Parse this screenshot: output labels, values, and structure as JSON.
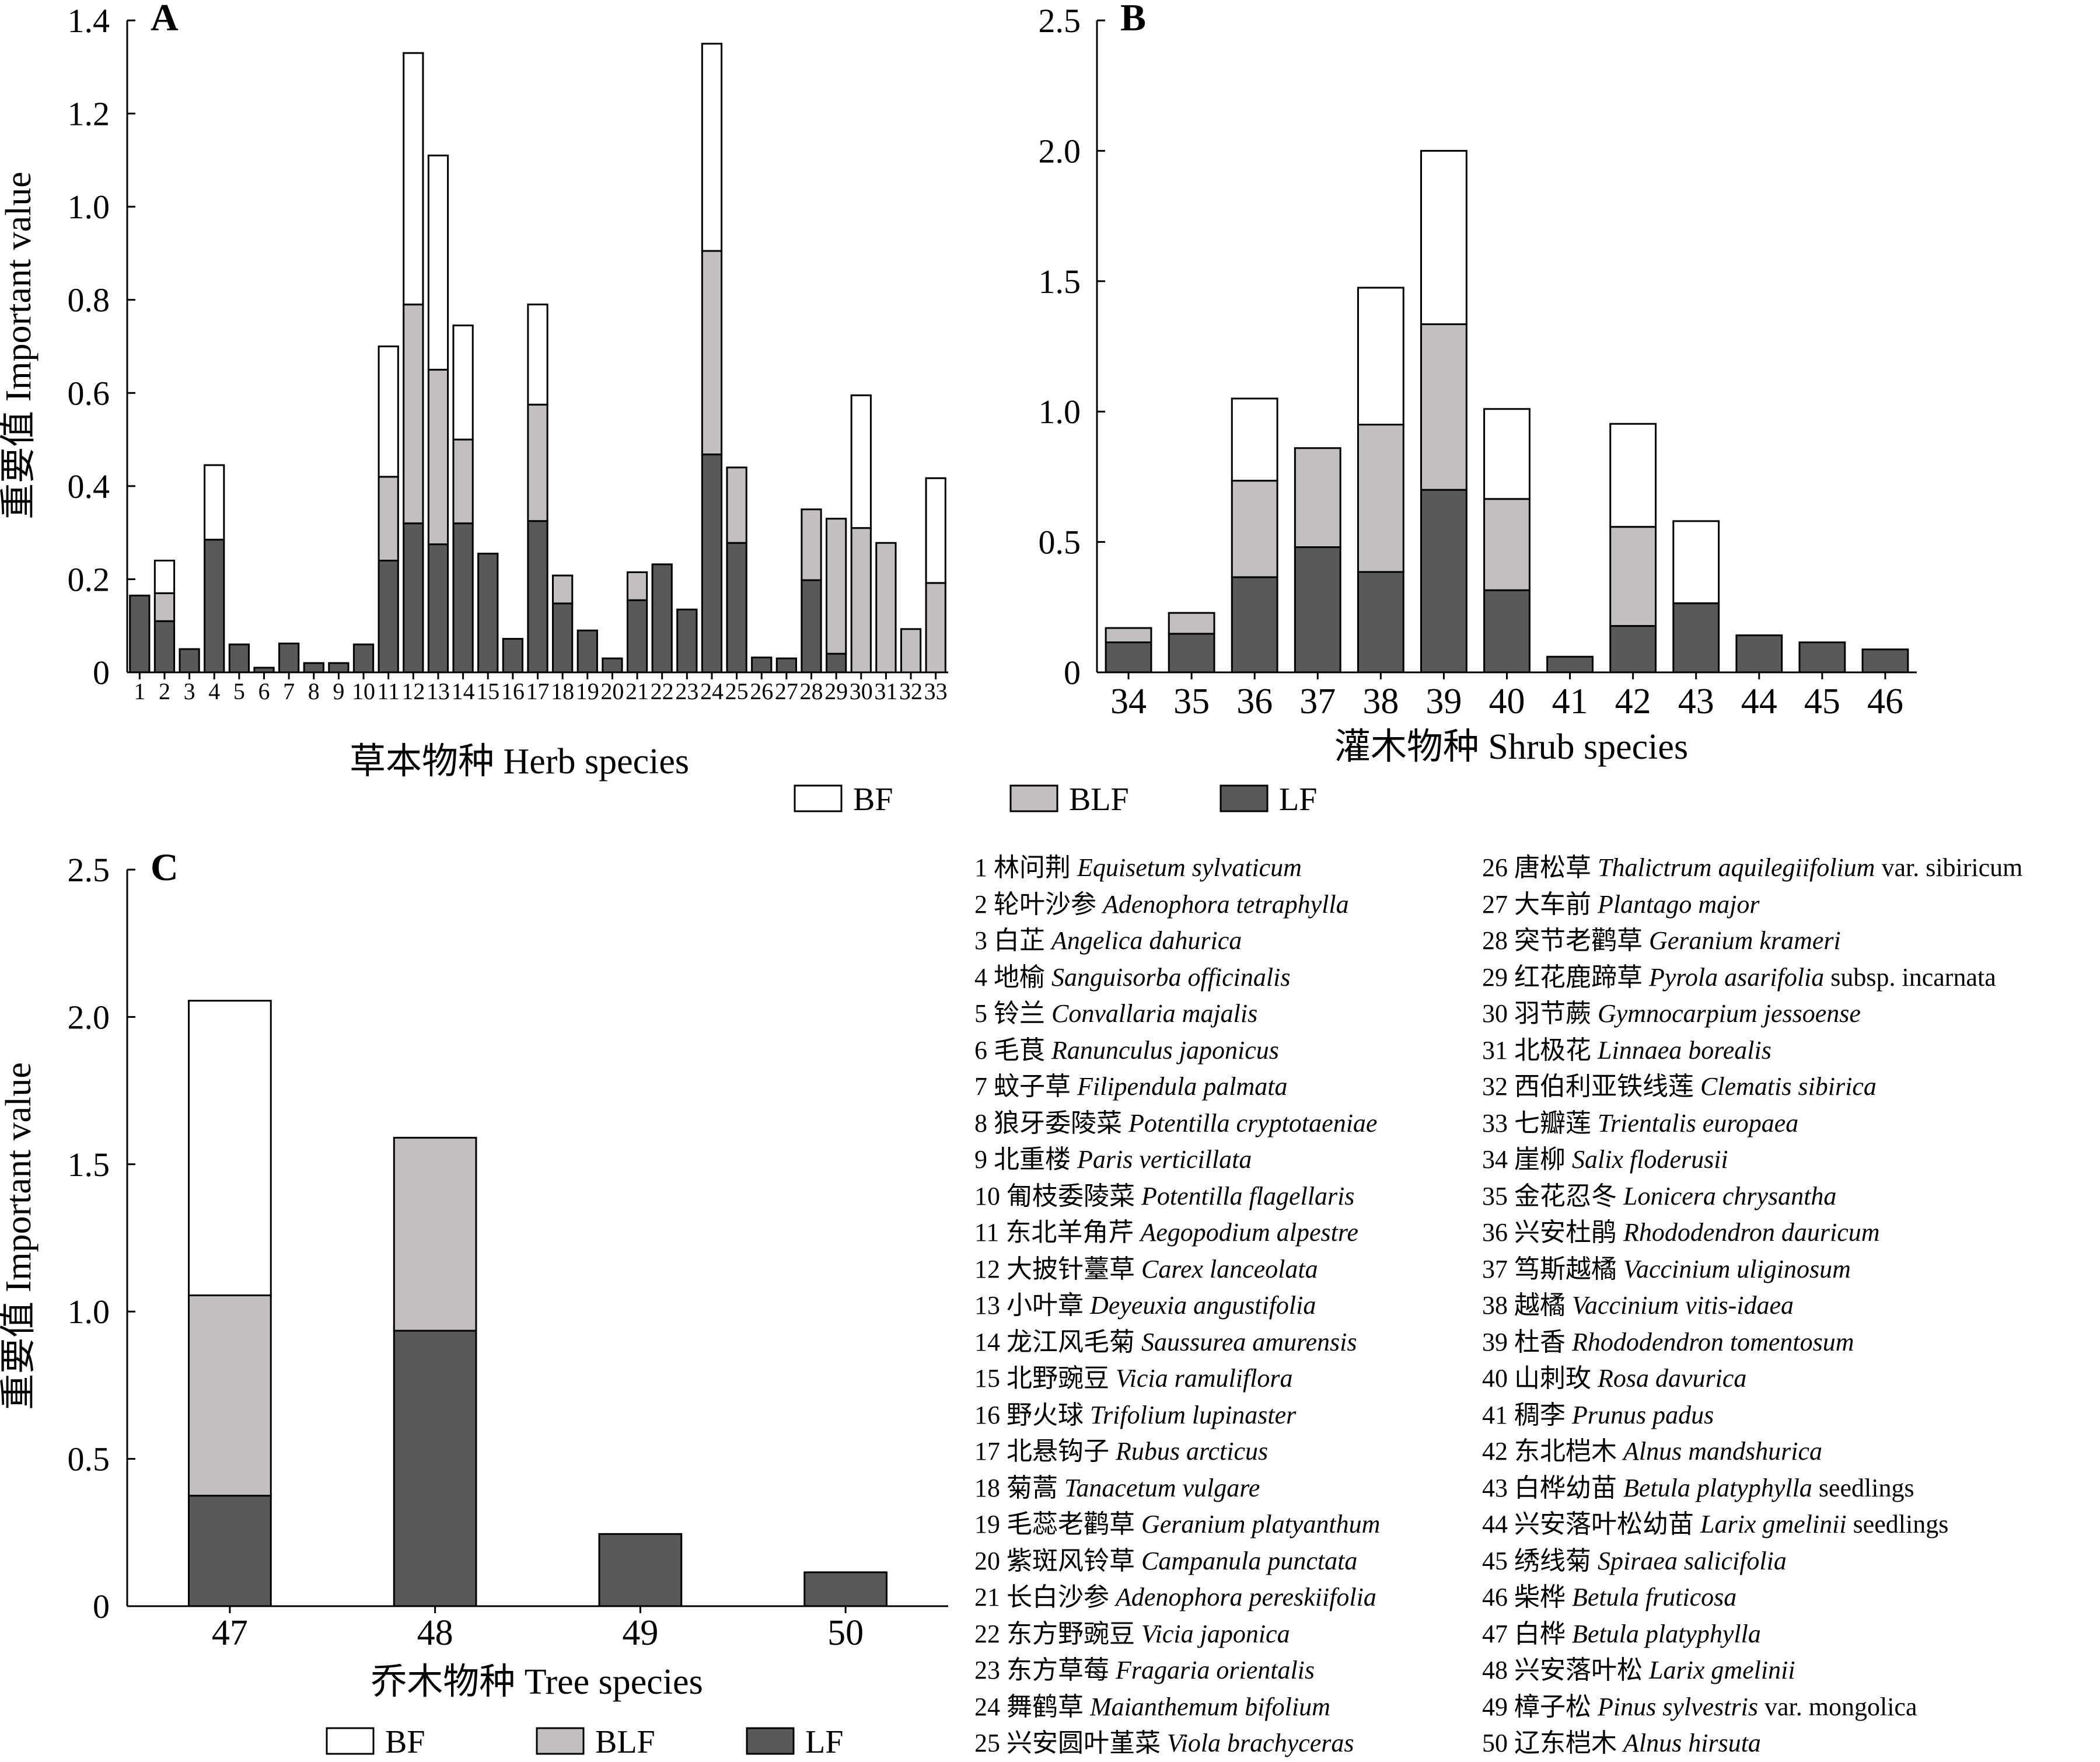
{
  "colors": {
    "BF": "#ffffff",
    "BLF": "#c3bec1",
    "LF": "#595959",
    "stroke": "#000000"
  },
  "legend": [
    {
      "key": "BF",
      "label": "BF"
    },
    {
      "key": "BLF",
      "label": "BLF"
    },
    {
      "key": "LF",
      "label": "LF"
    }
  ],
  "chart_data": [
    {
      "type": "bar",
      "stacked": true,
      "panel": "A",
      "xlabel": "草本物种 Herb species",
      "ylabel": "重要值 Important value",
      "ylim": [
        0,
        1.4
      ],
      "yticks": [
        "0",
        "0.2",
        "0.4",
        "0.6",
        "0.8",
        "1.0",
        "1.2",
        "1.4"
      ],
      "categories": [
        "1",
        "2",
        "3",
        "4",
        "5",
        "6",
        "7",
        "8",
        "9",
        "10",
        "11",
        "12",
        "13",
        "14",
        "15",
        "16",
        "17",
        "18",
        "19",
        "20",
        "21",
        "22",
        "23",
        "24",
        "25",
        "26",
        "27",
        "28",
        "29",
        "30",
        "31",
        "32",
        "33"
      ],
      "series": [
        {
          "name": "LF",
          "values": [
            0.165,
            0.11,
            0.05,
            0.285,
            0.06,
            0.01,
            0.062,
            0.02,
            0.02,
            0.06,
            0.24,
            0.32,
            0.275,
            0.32,
            0.255,
            0.072,
            0.325,
            0.148,
            0.09,
            0.03,
            0.155,
            0.232,
            0.135,
            0.468,
            0.278,
            0.032,
            0.03,
            0.198,
            0.04,
            0.0,
            0.0,
            0.0,
            0.0
          ]
        },
        {
          "name": "BLF",
          "values": [
            0,
            0.06,
            0,
            0,
            0,
            0,
            0,
            0,
            0,
            0,
            0.18,
            0.47,
            0.375,
            0.18,
            0,
            0,
            0.25,
            0.06,
            0,
            0,
            0.06,
            0,
            0,
            0.437,
            0.162,
            0,
            0,
            0.152,
            0.29,
            0.31,
            0.278,
            0.093,
            0.192
          ]
        },
        {
          "name": "BF",
          "values": [
            0,
            0.07,
            0,
            0.16,
            0,
            0,
            0,
            0,
            0,
            0,
            0.28,
            0.54,
            0.46,
            0.245,
            0,
            0,
            0.215,
            0,
            0,
            0,
            0,
            0,
            0,
            0.445,
            0,
            0,
            0,
            0,
            0,
            0.285,
            0,
            0,
            0.225
          ]
        }
      ]
    },
    {
      "type": "bar",
      "stacked": true,
      "panel": "B",
      "xlabel": "灌木物种 Shrub species",
      "ylabel": "",
      "ylim": [
        0,
        2.5
      ],
      "yticks": [
        "0",
        "0.5",
        "1.0",
        "1.5",
        "2.0",
        "2.5"
      ],
      "categories": [
        "34",
        "35",
        "36",
        "37",
        "38",
        "39",
        "40",
        "41",
        "42",
        "43",
        "44",
        "45",
        "46"
      ],
      "series": [
        {
          "name": "LF",
          "values": [
            0.115,
            0.148,
            0.365,
            0.48,
            0.385,
            0.7,
            0.315,
            0.06,
            0.178,
            0.265,
            0.142,
            0.115,
            0.088
          ]
        },
        {
          "name": "BLF",
          "values": [
            0.055,
            0.08,
            0.37,
            0.38,
            0.565,
            0.635,
            0.35,
            0,
            0.38,
            0,
            0,
            0,
            0
          ]
        },
        {
          "name": "BF",
          "values": [
            0,
            0,
            0.315,
            0,
            0.525,
            0.665,
            0.345,
            0,
            0.395,
            0.315,
            0,
            0,
            0
          ]
        }
      ]
    },
    {
      "type": "bar",
      "stacked": true,
      "panel": "C",
      "xlabel": "乔木物种 Tree species",
      "ylabel": "重要值 Important value",
      "ylim": [
        0,
        2.5
      ],
      "yticks": [
        "0",
        "0.5",
        "1.0",
        "1.5",
        "2.0",
        "2.5"
      ],
      "categories": [
        "47",
        "48",
        "49",
        "50"
      ],
      "series": [
        {
          "name": "LF",
          "values": [
            0.375,
            0.935,
            0.245,
            0.115
          ]
        },
        {
          "name": "BLF",
          "values": [
            0.68,
            0.655,
            0,
            0
          ]
        },
        {
          "name": "BF",
          "values": [
            1.0,
            0,
            0,
            0
          ]
        }
      ]
    }
  ],
  "species": [
    {
      "num": "1",
      "cn": "林问荆",
      "latin": "Equisetum sylvaticum",
      "extra": ""
    },
    {
      "num": "2",
      "cn": "轮叶沙参",
      "latin": "Adenophora tetraphylla",
      "extra": ""
    },
    {
      "num": "3",
      "cn": "白芷",
      "latin": "Angelica dahurica",
      "extra": ""
    },
    {
      "num": "4",
      "cn": "地榆",
      "latin": "Sanguisorba officinalis",
      "extra": ""
    },
    {
      "num": "5",
      "cn": "铃兰",
      "latin": "Convallaria majalis",
      "extra": ""
    },
    {
      "num": "6",
      "cn": "毛茛",
      "latin": "Ranunculus japonicus",
      "extra": ""
    },
    {
      "num": "7",
      "cn": "蚊子草",
      "latin": "Filipendula palmata",
      "extra": ""
    },
    {
      "num": "8",
      "cn": "狼牙委陵菜",
      "latin": "Potentilla cryptotaeniae",
      "extra": ""
    },
    {
      "num": "9",
      "cn": "北重楼",
      "latin": "Paris verticillata",
      "extra": ""
    },
    {
      "num": "10",
      "cn": "匍枝委陵菜",
      "latin": "Potentilla flagellaris",
      "extra": ""
    },
    {
      "num": "11",
      "cn": "东北羊角芹",
      "latin": "Aegopodium alpestre",
      "extra": ""
    },
    {
      "num": "12",
      "cn": "大披针薹草",
      "latin": "Carex lanceolata",
      "extra": ""
    },
    {
      "num": "13",
      "cn": "小叶章",
      "latin": "Deyeuxia angustifolia",
      "extra": ""
    },
    {
      "num": "14",
      "cn": "龙江风毛菊",
      "latin": "Saussurea amurensis",
      "extra": ""
    },
    {
      "num": "15",
      "cn": "北野豌豆",
      "latin": "Vicia ramuliflora",
      "extra": ""
    },
    {
      "num": "16",
      "cn": "野火球",
      "latin": "Trifolium lupinaster",
      "extra": ""
    },
    {
      "num": "17",
      "cn": "北悬钩子",
      "latin": "Rubus arcticus",
      "extra": ""
    },
    {
      "num": "18",
      "cn": "菊蒿",
      "latin": "Tanacetum vulgare",
      "extra": ""
    },
    {
      "num": "19",
      "cn": "毛蕊老鹳草",
      "latin": "Geranium platyanthum",
      "extra": ""
    },
    {
      "num": "20",
      "cn": "紫斑风铃草",
      "latin": "Campanula punctata",
      "extra": ""
    },
    {
      "num": "21",
      "cn": "长白沙参",
      "latin": "Adenophora pereskiifolia",
      "extra": ""
    },
    {
      "num": "22",
      "cn": "东方野豌豆",
      "latin": "Vicia japonica",
      "extra": ""
    },
    {
      "num": "23",
      "cn": "东方草莓",
      "latin": "Fragaria orientalis",
      "extra": ""
    },
    {
      "num": "24",
      "cn": "舞鹤草",
      "latin": "Maianthemum bifolium",
      "extra": ""
    },
    {
      "num": "25",
      "cn": "兴安圆叶堇菜",
      "latin": "Viola brachyceras",
      "extra": ""
    },
    {
      "num": "26",
      "cn": "唐松草",
      "latin": "Thalictrum aquilegiifolium",
      "extra": "var. sibiricum"
    },
    {
      "num": "27",
      "cn": "大车前",
      "latin": "Plantago major",
      "extra": ""
    },
    {
      "num": "28",
      "cn": "突节老鹳草",
      "latin": "Geranium krameri",
      "extra": ""
    },
    {
      "num": "29",
      "cn": "红花鹿蹄草",
      "latin": "Pyrola asarifolia",
      "extra": "subsp. incarnata"
    },
    {
      "num": "30",
      "cn": "羽节蕨",
      "latin": "Gymnocarpium jessoense",
      "extra": ""
    },
    {
      "num": "31",
      "cn": "北极花",
      "latin": "Linnaea borealis",
      "extra": ""
    },
    {
      "num": "32",
      "cn": "西伯利亚铁线莲",
      "latin": "Clematis sibirica",
      "extra": ""
    },
    {
      "num": "33",
      "cn": "七瓣莲",
      "latin": "Trientalis europaea",
      "extra": ""
    },
    {
      "num": "34",
      "cn": "崖柳",
      "latin": "Salix floderusii",
      "extra": ""
    },
    {
      "num": "35",
      "cn": "金花忍冬",
      "latin": "Lonicera chrysantha",
      "extra": ""
    },
    {
      "num": "36",
      "cn": "兴安杜鹃",
      "latin": "Rhododendron dauricum",
      "extra": ""
    },
    {
      "num": "37",
      "cn": "笃斯越橘",
      "latin": "Vaccinium uliginosum",
      "extra": ""
    },
    {
      "num": "38",
      "cn": "越橘",
      "latin": "Vaccinium vitis-idaea",
      "extra": ""
    },
    {
      "num": "39",
      "cn": "杜香",
      "latin": "Rhododendron tomentosum",
      "extra": ""
    },
    {
      "num": "40",
      "cn": "山刺玫",
      "latin": "Rosa davurica",
      "extra": ""
    },
    {
      "num": "41",
      "cn": "稠李",
      "latin": "Prunus padus",
      "extra": ""
    },
    {
      "num": "42",
      "cn": "东北桤木",
      "latin": "Alnus mandshurica",
      "extra": ""
    },
    {
      "num": "43",
      "cn": "白桦幼苗",
      "latin": "Betula platyphylla",
      "extra": "seedlings"
    },
    {
      "num": "44",
      "cn": "兴安落叶松幼苗",
      "latin": "Larix gmelinii",
      "extra": "seedlings"
    },
    {
      "num": "45",
      "cn": "绣线菊",
      "latin": "Spiraea salicifolia",
      "extra": ""
    },
    {
      "num": "46",
      "cn": "柴桦",
      "latin": "Betula fruticosa",
      "extra": ""
    },
    {
      "num": "47",
      "cn": "白桦",
      "latin": "Betula platyphylla",
      "extra": ""
    },
    {
      "num": "48",
      "cn": "兴安落叶松",
      "latin": "Larix gmelinii",
      "extra": ""
    },
    {
      "num": "49",
      "cn": "樟子松",
      "latin": "Pinus sylvestris",
      "extra": "var. mongolica"
    },
    {
      "num": "50",
      "cn": "辽东桤木",
      "latin": "Alnus hirsuta",
      "extra": ""
    }
  ]
}
